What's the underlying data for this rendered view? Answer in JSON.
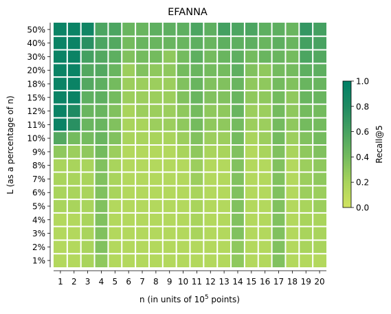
{
  "chart_data": {
    "type": "heatmap",
    "title": "EFANNA",
    "xlabel": "n (in units of 10",
    "xlabel_sup": "5",
    "xlabel_tail": " points)",
    "ylabel": "L (as a percentage of n)",
    "x_categories": [
      "1",
      "2",
      "3",
      "4",
      "5",
      "6",
      "7",
      "8",
      "9",
      "10",
      "11",
      "12",
      "13",
      "14",
      "15",
      "16",
      "17",
      "18",
      "19",
      "20"
    ],
    "y_categories": [
      "50%",
      "40%",
      "30%",
      "20%",
      "18%",
      "15%",
      "12%",
      "11%",
      "10%",
      "9%",
      "8%",
      "7%",
      "6%",
      "5%",
      "4%",
      "3%",
      "2%",
      "1%"
    ],
    "values": [
      [
        0.93,
        0.93,
        0.9,
        0.58,
        0.58,
        0.45,
        0.45,
        0.5,
        0.5,
        0.5,
        0.58,
        0.5,
        0.62,
        0.58,
        0.58,
        0.5,
        0.5,
        0.45,
        0.7,
        0.62
      ],
      [
        0.93,
        0.93,
        0.75,
        0.58,
        0.55,
        0.4,
        0.45,
        0.45,
        0.45,
        0.45,
        0.5,
        0.45,
        0.5,
        0.5,
        0.5,
        0.45,
        0.5,
        0.45,
        0.62,
        0.6
      ],
      [
        0.93,
        0.93,
        0.62,
        0.55,
        0.5,
        0.35,
        0.4,
        0.4,
        0.3,
        0.4,
        0.5,
        0.4,
        0.45,
        0.5,
        0.4,
        0.45,
        0.45,
        0.4,
        0.58,
        0.55
      ],
      [
        0.93,
        0.93,
        0.55,
        0.55,
        0.45,
        0.25,
        0.35,
        0.3,
        0.3,
        0.4,
        0.45,
        0.4,
        0.4,
        0.5,
        0.35,
        0.3,
        0.4,
        0.4,
        0.5,
        0.5
      ],
      [
        0.93,
        0.93,
        0.55,
        0.5,
        0.4,
        0.25,
        0.25,
        0.25,
        0.25,
        0.35,
        0.45,
        0.35,
        0.35,
        0.45,
        0.3,
        0.3,
        0.4,
        0.35,
        0.45,
        0.45
      ],
      [
        0.93,
        0.93,
        0.5,
        0.5,
        0.4,
        0.25,
        0.25,
        0.25,
        0.25,
        0.35,
        0.45,
        0.35,
        0.35,
        0.45,
        0.3,
        0.3,
        0.4,
        0.3,
        0.45,
        0.45
      ],
      [
        0.93,
        0.8,
        0.45,
        0.45,
        0.35,
        0.2,
        0.25,
        0.25,
        0.25,
        0.3,
        0.4,
        0.3,
        0.3,
        0.45,
        0.25,
        0.25,
        0.4,
        0.3,
        0.4,
        0.4
      ],
      [
        0.93,
        0.75,
        0.45,
        0.45,
        0.35,
        0.2,
        0.2,
        0.25,
        0.25,
        0.3,
        0.4,
        0.3,
        0.3,
        0.4,
        0.25,
        0.25,
        0.4,
        0.3,
        0.4,
        0.4
      ],
      [
        0.55,
        0.4,
        0.4,
        0.45,
        0.35,
        0.2,
        0.2,
        0.2,
        0.2,
        0.25,
        0.35,
        0.25,
        0.25,
        0.4,
        0.2,
        0.25,
        0.4,
        0.25,
        0.35,
        0.4
      ],
      [
        0.3,
        0.25,
        0.3,
        0.4,
        0.25,
        0.15,
        0.15,
        0.15,
        0.15,
        0.2,
        0.3,
        0.2,
        0.2,
        0.35,
        0.15,
        0.2,
        0.35,
        0.2,
        0.3,
        0.35
      ],
      [
        0.2,
        0.2,
        0.2,
        0.35,
        0.2,
        0.15,
        0.15,
        0.15,
        0.15,
        0.15,
        0.25,
        0.15,
        0.15,
        0.35,
        0.15,
        0.15,
        0.35,
        0.15,
        0.25,
        0.3
      ],
      [
        0.2,
        0.2,
        0.2,
        0.35,
        0.2,
        0.15,
        0.15,
        0.15,
        0.15,
        0.15,
        0.25,
        0.15,
        0.15,
        0.35,
        0.15,
        0.15,
        0.35,
        0.15,
        0.25,
        0.3
      ],
      [
        0.2,
        0.2,
        0.2,
        0.35,
        0.2,
        0.15,
        0.15,
        0.15,
        0.15,
        0.15,
        0.2,
        0.15,
        0.15,
        0.35,
        0.15,
        0.15,
        0.35,
        0.15,
        0.25,
        0.25
      ],
      [
        0.2,
        0.2,
        0.2,
        0.35,
        0.15,
        0.15,
        0.15,
        0.15,
        0.15,
        0.15,
        0.2,
        0.15,
        0.15,
        0.35,
        0.15,
        0.15,
        0.35,
        0.15,
        0.2,
        0.25
      ],
      [
        0.15,
        0.15,
        0.2,
        0.35,
        0.15,
        0.15,
        0.15,
        0.15,
        0.15,
        0.15,
        0.2,
        0.15,
        0.15,
        0.35,
        0.15,
        0.15,
        0.35,
        0.15,
        0.2,
        0.2
      ],
      [
        0.15,
        0.15,
        0.2,
        0.35,
        0.15,
        0.15,
        0.15,
        0.15,
        0.15,
        0.15,
        0.2,
        0.15,
        0.15,
        0.35,
        0.15,
        0.15,
        0.35,
        0.15,
        0.2,
        0.2
      ],
      [
        0.15,
        0.15,
        0.2,
        0.35,
        0.15,
        0.15,
        0.15,
        0.15,
        0.15,
        0.15,
        0.15,
        0.15,
        0.15,
        0.3,
        0.15,
        0.15,
        0.35,
        0.15,
        0.2,
        0.2
      ],
      [
        0.15,
        0.15,
        0.2,
        0.3,
        0.15,
        0.15,
        0.15,
        0.15,
        0.15,
        0.15,
        0.15,
        0.15,
        0.15,
        0.3,
        0.15,
        0.15,
        0.35,
        0.15,
        0.15,
        0.15
      ]
    ],
    "colorbar": {
      "label": "Recall@5",
      "min": 0.0,
      "max": 1.0,
      "ticks": [
        "0.0",
        "0.2",
        "0.4",
        "0.6",
        "0.8",
        "1.0"
      ],
      "colors": [
        "#d2e360",
        "#a9d45c",
        "#74bb5e",
        "#48a261",
        "#1f8a62",
        "#007f66"
      ]
    },
    "grid": true
  }
}
